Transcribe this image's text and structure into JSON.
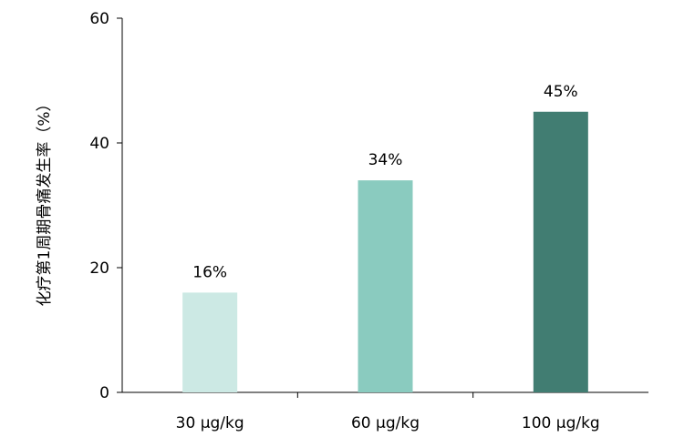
{
  "chart_data": {
    "type": "bar",
    "title": "",
    "xlabel": "",
    "ylabel": "化疗第1周期骨痛发生率（%）",
    "categories": [
      "30 μg/kg",
      "60 μg/kg",
      "100 μg/kg"
    ],
    "values": [
      16,
      34,
      45
    ],
    "data_labels": [
      "16%",
      "34%",
      "45%"
    ],
    "bar_colors": [
      "#cce9e4",
      "#8acbbf",
      "#417d72"
    ],
    "ylim": [
      0,
      60
    ],
    "yticks": [
      0,
      20,
      40,
      60
    ],
    "ytick_labels": [
      "0",
      "20",
      "40",
      "60"
    ],
    "grid": false,
    "legend": "none"
  }
}
